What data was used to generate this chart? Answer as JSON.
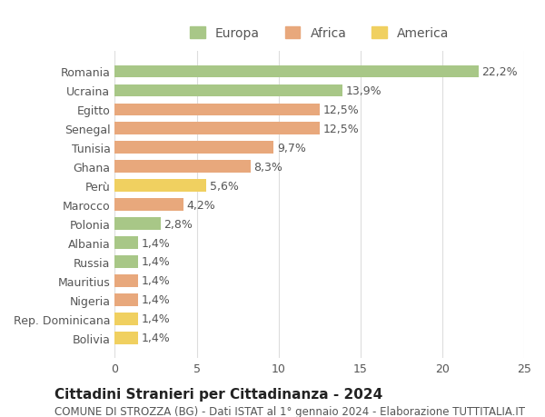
{
  "categories": [
    "Romania",
    "Ucraina",
    "Egitto",
    "Senegal",
    "Tunisia",
    "Ghana",
    "Perù",
    "Marocco",
    "Polonia",
    "Albania",
    "Russia",
    "Mauritius",
    "Nigeria",
    "Rep. Dominicana",
    "Bolivia"
  ],
  "values": [
    22.2,
    13.9,
    12.5,
    12.5,
    9.7,
    8.3,
    5.6,
    4.2,
    2.8,
    1.4,
    1.4,
    1.4,
    1.4,
    1.4,
    1.4
  ],
  "labels": [
    "22,2%",
    "13,9%",
    "12,5%",
    "12,5%",
    "9,7%",
    "8,3%",
    "5,6%",
    "4,2%",
    "2,8%",
    "1,4%",
    "1,4%",
    "1,4%",
    "1,4%",
    "1,4%",
    "1,4%"
  ],
  "continents": [
    "Europa",
    "Europa",
    "Africa",
    "Africa",
    "Africa",
    "Africa",
    "America",
    "Africa",
    "Europa",
    "Europa",
    "Europa",
    "Africa",
    "Africa",
    "America",
    "America"
  ],
  "colors": {
    "Europa": "#a8c787",
    "Africa": "#e8a87c",
    "America": "#f0d060"
  },
  "legend_colors": {
    "Europa": "#a8c787",
    "Africa": "#e8a87c",
    "America": "#f0d060"
  },
  "title": "Cittadini Stranieri per Cittadinanza - 2024",
  "subtitle": "COMUNE DI STROZZA (BG) - Dati ISTAT al 1° gennaio 2024 - Elaborazione TUTTITALIA.IT",
  "xlim": [
    0,
    25
  ],
  "xticks": [
    0,
    5,
    10,
    15,
    20,
    25
  ],
  "background_color": "#ffffff",
  "bar_height": 0.65,
  "label_fontsize": 9,
  "title_fontsize": 11,
  "subtitle_fontsize": 8.5,
  "tick_fontsize": 9,
  "legend_fontsize": 10
}
